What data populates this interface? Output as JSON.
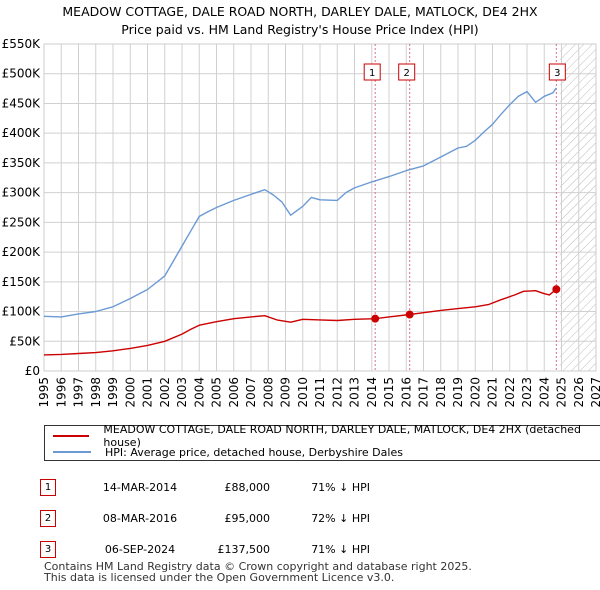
{
  "title_line1": "MEADOW COTTAGE, DALE ROAD NORTH, DARLEY DALE, MATLOCK, DE4 2HX",
  "title_line2": "Price paid vs. HM Land Registry's House Price Index (HPI)",
  "colors": {
    "property": "#cc0000",
    "hpi": "#6b9ad4",
    "marker_line": "#e36b8a",
    "grid": "#d0d0d0"
  },
  "chart_data": {
    "type": "line",
    "xlim": [
      1995,
      2027
    ],
    "ylim": [
      0,
      550000
    ],
    "y_ticks": [
      {
        "value": 0,
        "label": "£0"
      },
      {
        "value": 50000,
        "label": "£50K"
      },
      {
        "value": 100000,
        "label": "£100K"
      },
      {
        "value": 150000,
        "label": "£150K"
      },
      {
        "value": 200000,
        "label": "£200K"
      },
      {
        "value": 250000,
        "label": "£250K"
      },
      {
        "value": 300000,
        "label": "£300K"
      },
      {
        "value": 350000,
        "label": "£350K"
      },
      {
        "value": 400000,
        "label": "£400K"
      },
      {
        "value": 450000,
        "label": "£450K"
      },
      {
        "value": 500000,
        "label": "£500K"
      },
      {
        "value": 550000,
        "label": "£550K"
      }
    ],
    "x_ticks": [
      "1995",
      "1996",
      "1997",
      "1998",
      "1999",
      "2000",
      "2001",
      "2002",
      "2003",
      "2004",
      "2005",
      "2006",
      "2007",
      "2008",
      "2009",
      "2010",
      "2011",
      "2012",
      "2013",
      "2014",
      "2015",
      "2016",
      "2017",
      "2018",
      "2019",
      "2020",
      "2021",
      "2022",
      "2023",
      "2024",
      "2025",
      "2026",
      "2027"
    ],
    "forecast_start": 2024.9,
    "series": [
      {
        "name": "MEADOW COTTAGE, DALE ROAD NORTH, DARLEY DALE, MATLOCK, DE4 2HX (detached house)",
        "color": "#cc0000",
        "x": [
          1995.0,
          1996.0,
          1997.0,
          1998.0,
          1999.0,
          2000.0,
          2001.0,
          2002.0,
          2003.0,
          2003.5,
          2004.0,
          2005.0,
          2006.0,
          2007.0,
          2007.8,
          2008.5,
          2009.3,
          2010.0,
          2011.0,
          2012.0,
          2013.0,
          2014.2,
          2015.0,
          2016.2,
          2017.0,
          2018.0,
          2019.0,
          2020.0,
          2020.8,
          2021.5,
          2022.3,
          2022.8,
          2023.5,
          2024.0,
          2024.3,
          2024.7
        ],
        "y": [
          27000,
          28000,
          29500,
          31000,
          34000,
          38000,
          43000,
          50000,
          62000,
          70000,
          77000,
          83000,
          88000,
          91000,
          93000,
          86000,
          82000,
          87000,
          86000,
          85000,
          87000,
          88000,
          91000,
          95000,
          98000,
          102000,
          105000,
          108000,
          112000,
          120000,
          128000,
          134000,
          135000,
          130000,
          128000,
          137500
        ]
      },
      {
        "name": "HPI: Average price, detached house, Derbyshire Dales",
        "color": "#6b9ad4",
        "x": [
          1995.0,
          1996.0,
          1997.0,
          1998.0,
          1999.0,
          2000.0,
          2001.0,
          2002.0,
          2002.5,
          2003.0,
          2003.5,
          2004.0,
          2004.5,
          2005.0,
          2006.0,
          2007.0,
          2007.8,
          2008.3,
          2008.8,
          2009.3,
          2010.0,
          2010.5,
          2011.0,
          2012.0,
          2012.5,
          2013.0,
          2014.0,
          2015.0,
          2016.0,
          2017.0,
          2018.0,
          2019.0,
          2019.5,
          2020.0,
          2020.5,
          2021.0,
          2021.5,
          2022.0,
          2022.5,
          2023.0,
          2023.5,
          2024.0,
          2024.5,
          2024.7
        ],
        "y": [
          92000,
          91000,
          96000,
          100000,
          108000,
          122000,
          137000,
          160000,
          185000,
          210000,
          235000,
          260000,
          268000,
          275000,
          287000,
          297000,
          305000,
          296000,
          284000,
          262000,
          277000,
          292000,
          288000,
          287000,
          300000,
          308000,
          318000,
          327000,
          337000,
          345000,
          360000,
          375000,
          378000,
          388000,
          402000,
          415000,
          432000,
          448000,
          462000,
          470000,
          452000,
          462000,
          468000,
          476000
        ]
      }
    ],
    "markers": [
      {
        "label": "1",
        "x": 2014.2,
        "y": 88000
      },
      {
        "label": "2",
        "x": 2016.2,
        "y": 95000
      },
      {
        "label": "3",
        "x": 2024.7,
        "y": 137500
      }
    ]
  },
  "legend": {
    "property_label": "MEADOW COTTAGE, DALE ROAD NORTH, DARLEY DALE, MATLOCK, DE4 2HX (detached house)",
    "hpi_label": "HPI: Average price, detached house, Derbyshire Dales"
  },
  "transactions": [
    {
      "num": "1",
      "date": "14-MAR-2014",
      "price": "£88,000",
      "hpi": "71% ↓ HPI"
    },
    {
      "num": "2",
      "date": "08-MAR-2016",
      "price": "£95,000",
      "hpi": "72% ↓ HPI"
    },
    {
      "num": "3",
      "date": "06-SEP-2024",
      "price": "£137,500",
      "hpi": "71% ↓ HPI"
    }
  ],
  "footer_line1": "Contains HM Land Registry data © Crown copyright and database right 2025.",
  "footer_line2": "This data is licensed under the Open Government Licence v3.0."
}
